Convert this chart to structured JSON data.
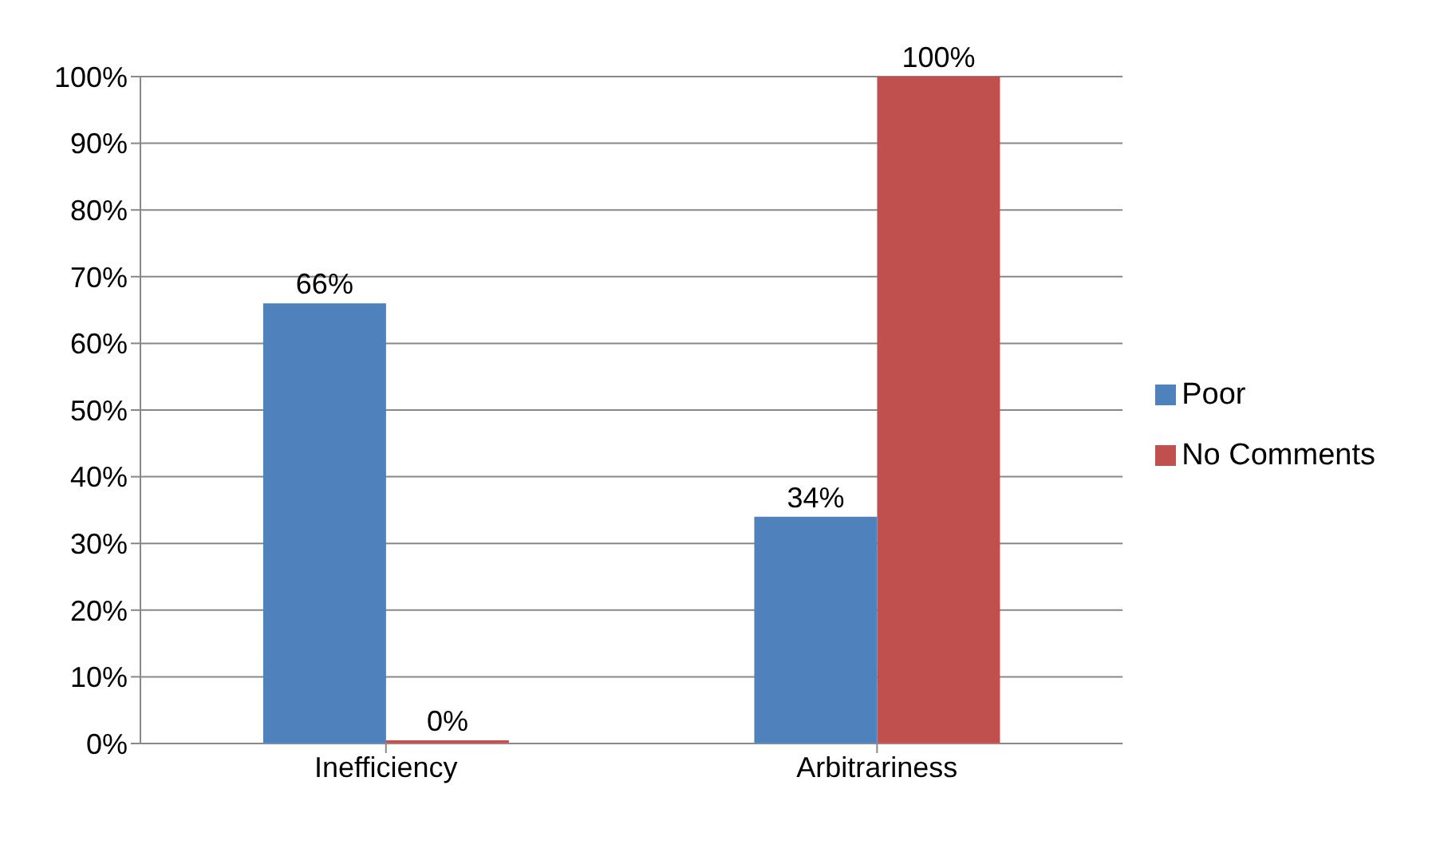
{
  "chart_data": {
    "type": "bar",
    "categories": [
      "Inefficiency",
      "Arbitrariness"
    ],
    "series": [
      {
        "name": "Poor",
        "color": "#4f81bd",
        "values": [
          66,
          34
        ],
        "value_labels": [
          "66%",
          "34%"
        ]
      },
      {
        "name": "No Comments",
        "color": "#c0504d",
        "values": [
          0,
          100
        ],
        "value_labels": [
          "0%",
          "100%"
        ]
      }
    ],
    "ylim": [
      0,
      100
    ],
    "yticks": [
      {
        "value": 0,
        "label": "0%"
      },
      {
        "value": 10,
        "label": "10%"
      },
      {
        "value": 20,
        "label": "20%"
      },
      {
        "value": 30,
        "label": "30%"
      },
      {
        "value": 40,
        "label": "40%"
      },
      {
        "value": 50,
        "label": "50%"
      },
      {
        "value": 60,
        "label": "60%"
      },
      {
        "value": 70,
        "label": "70%"
      },
      {
        "value": 80,
        "label": "80%"
      },
      {
        "value": 90,
        "label": "90%"
      },
      {
        "value": 100,
        "label": "100%"
      }
    ],
    "grid": "y",
    "legend": "right"
  }
}
